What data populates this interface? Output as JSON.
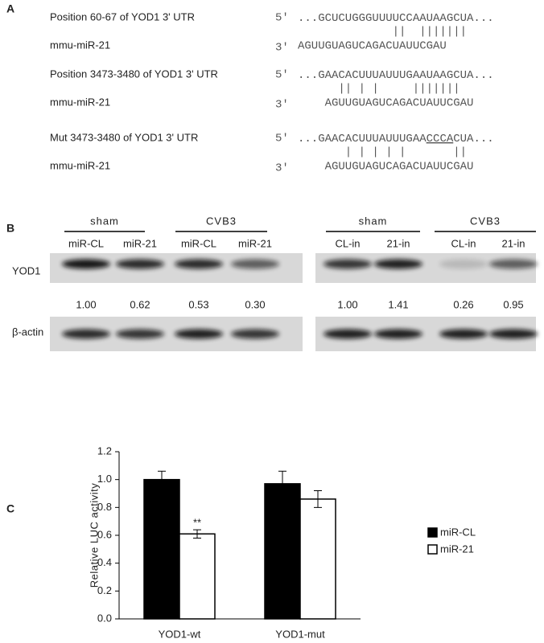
{
  "panel_a": {
    "label": "A",
    "alignments": [
      {
        "target": "Position 60-67 of YOD1 3' UTR",
        "target_end": "5'",
        "target_seq": [
          {
            "text": "...GCUCUGGGUUUUCCAAUAAGCUA...",
            "underline": false
          }
        ],
        "pairing": "||  |||||||",
        "mirna": "mmu-miR-21",
        "mirna_end": "3'",
        "mirna_seq": "AGUUGUAGUCAGACUAUUCGAU"
      },
      {
        "target": "Position 3473-3480  of YOD1 3' UTR",
        "target_end": "5'",
        "target_seq": [
          {
            "text": "...GAACACUUUAUUUGAAUAAGCUA...",
            "underline": false
          }
        ],
        "pairing": "|| | |     |||||||",
        "mirna": "mmu-miR-21",
        "mirna_end": "3'",
        "mirna_seq": "AGUUGUAGUCAGACUAUUCGAU"
      },
      {
        "target": "Mut 3473-3480  of YOD1 3' UTR",
        "target_end": "5'",
        "target_seq": [
          {
            "text": "...GAACACUUUAUUUGAA",
            "underline": false
          },
          {
            "text": "CCCA",
            "underline": true
          },
          {
            "text": "CUA...",
            "underline": false
          }
        ],
        "pairing": "| | | | |       ||",
        "mirna": "mmu-miR-21",
        "mirna_end": "3'",
        "mirna_seq": "AGUUGUAGUCAGACUAUUCGAU"
      }
    ]
  },
  "panel_b": {
    "label": "B",
    "row_labels": [
      "YOD1",
      "β-actin"
    ],
    "blots": [
      {
        "groups": [
          "sham",
          "CVB3"
        ],
        "lanes": [
          "miR-CL",
          "miR-21",
          "miR-CL",
          "miR-21"
        ],
        "values": [
          "1.00",
          "0.62",
          "0.53",
          "0.30"
        ]
      },
      {
        "groups": [
          "sham",
          "CVB3"
        ],
        "lanes": [
          "CL-in",
          "21-in",
          "CL-in",
          "21-in"
        ],
        "values": [
          "1.00",
          "1.41",
          "0.26",
          "0.95"
        ]
      }
    ]
  },
  "chart_data": {
    "type": "bar",
    "label": "C",
    "y_label": "Relative LUC activity",
    "categories": [
      "YOD1-wt",
      "YOD1-mut"
    ],
    "series": [
      {
        "name": "miR-CL",
        "color": "#000000",
        "values": [
          1.0,
          0.97
        ],
        "errors": [
          0.06,
          0.09
        ]
      },
      {
        "name": "miR-21",
        "color": "#ffffff",
        "values": [
          0.61,
          0.86
        ],
        "errors": [
          0.03,
          0.06
        ]
      }
    ],
    "annotations": [
      {
        "text": "**",
        "series": 1,
        "category": 0
      }
    ],
    "ylim": [
      0,
      1.2
    ],
    "yticks": [
      {
        "value": 0,
        "label": "0.0"
      },
      {
        "value": 0.2,
        "label": "0.2"
      },
      {
        "value": 0.4,
        "label": "0.4"
      },
      {
        "value": 0.6,
        "label": "0.6"
      },
      {
        "value": 0.8,
        "label": "0.8"
      },
      {
        "value": 1.0,
        "label": "1.0"
      },
      {
        "value": 1.2,
        "label": "1.2"
      }
    ],
    "legend": "right"
  }
}
